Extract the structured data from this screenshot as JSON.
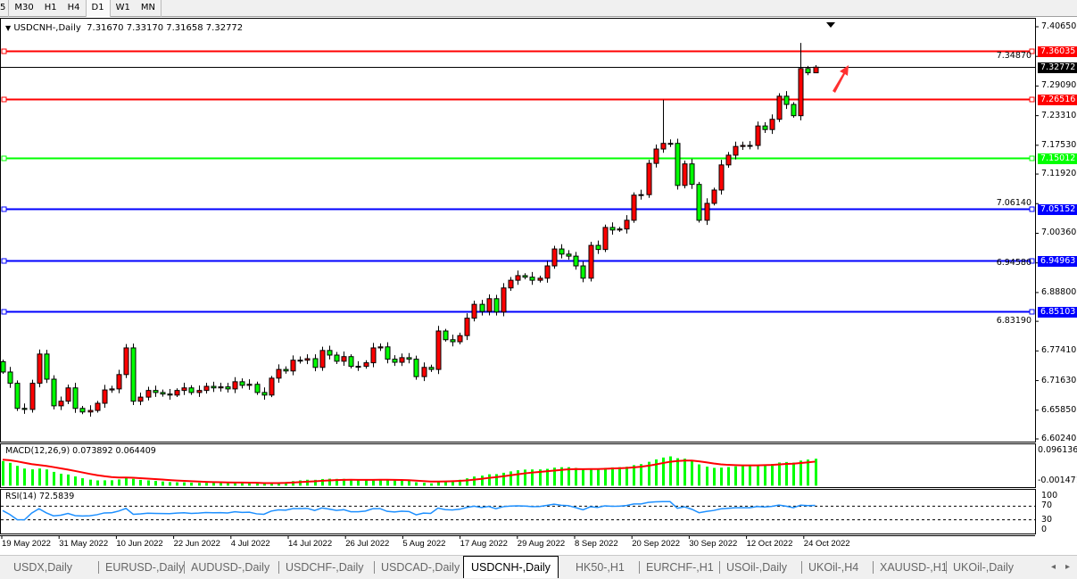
{
  "toolbar": {
    "timeframes": [
      "5",
      "M30",
      "H1",
      "H4",
      "D1",
      "W1",
      "MN"
    ],
    "active": "D1"
  },
  "header": {
    "symbol": "USDCNH-,Daily",
    "open": "7.31670",
    "high": "7.33170",
    "low": "7.31658",
    "close": "7.32772"
  },
  "chart_data": {
    "type": "candlestick",
    "symbol": "USDCNH-",
    "timeframe": "Daily",
    "up_color": "#ff0000",
    "down_color": "#00ff00",
    "price_axis_ticks": [
      "7.40650",
      "7.34870",
      "7.29090",
      "7.23310",
      "7.17530",
      "7.11920",
      "7.06140",
      "7.00360",
      "6.94580",
      "6.88800",
      "6.83190",
      "6.77410",
      "6.71630",
      "6.65850",
      "6.60240"
    ],
    "ylim": [
      6.6024,
      7.4065
    ],
    "date_ticks": [
      "19 May 2022",
      "31 May 2022",
      "10 Jun 2022",
      "22 Jun 2022",
      "4 Jul 2022",
      "14 Jul 2022",
      "26 Jul 2022",
      "5 Aug 2022",
      "17 Aug 2022",
      "29 Aug 2022",
      "8 Sep 2022",
      "20 Sep 2022",
      "30 Sep 2022",
      "12 Oct 2022",
      "24 Oct 2022"
    ],
    "closes": [
      6.733,
      6.711,
      6.662,
      6.66,
      6.711,
      6.768,
      6.719,
      6.667,
      6.676,
      6.702,
      6.662,
      6.655,
      6.658,
      6.672,
      6.698,
      6.7,
      6.728,
      6.78,
      6.676,
      6.684,
      6.697,
      6.693,
      6.69,
      6.688,
      6.697,
      6.702,
      6.693,
      6.697,
      6.705,
      6.702,
      6.704,
      6.7,
      6.714,
      6.707,
      6.709,
      6.693,
      6.688,
      6.721,
      6.738,
      6.735,
      6.756,
      6.756,
      6.759,
      6.742,
      6.775,
      6.766,
      6.754,
      6.763,
      6.744,
      6.744,
      6.751,
      6.78,
      6.782,
      6.758,
      6.752,
      6.761,
      6.758,
      6.724,
      6.742,
      6.738,
      6.813,
      6.796,
      6.792,
      6.804,
      6.838,
      6.865,
      6.851,
      6.876,
      6.85,
      6.897,
      6.912,
      6.921,
      6.918,
      6.912,
      6.916,
      6.94,
      6.973,
      6.963,
      6.959,
      6.94,
      6.916,
      6.98,
      6.972,
      7.015,
      7.01,
      7.012,
      7.029,
      7.078,
      7.079,
      7.14,
      7.168,
      7.179,
      7.179,
      7.097,
      7.139,
      7.099,
      7.029,
      7.062,
      7.088,
      7.137,
      7.156,
      7.173,
      7.175,
      7.175,
      7.213,
      7.206,
      7.226,
      7.271,
      7.255,
      7.233,
      7.325,
      7.3167,
      7.32772
    ],
    "last_candle": {
      "open": 7.3167,
      "high": 7.3317,
      "low": 7.31658,
      "close": 7.32772
    },
    "levels": [
      {
        "price": 7.36035,
        "label": "7.36035",
        "color": "#ff0000"
      },
      {
        "price": 7.26516,
        "label": "7.26516",
        "color": "#ff0000"
      },
      {
        "price": 7.15012,
        "label": "7.15012",
        "color": "#00ff00"
      },
      {
        "price": 7.05152,
        "label": "7.05152",
        "color": "#0000ff"
      },
      {
        "price": 6.94963,
        "label": "6.94963",
        "color": "#0000ff"
      },
      {
        "price": 6.85103,
        "label": "6.85103",
        "color": "#0000ff"
      }
    ],
    "current_price": {
      "price": 7.32772,
      "label": "7.32772",
      "color": "#000000"
    },
    "macd": {
      "label": "MACD(12,26,9) 0.073892 0.064409",
      "ticks": [
        "0.096136",
        "-0.001471"
      ],
      "range": [
        -0.001471,
        0.096136
      ],
      "histogram_color": "#00ff00",
      "signal_color": "#ff0000"
    },
    "rsi": {
      "label": "RSI(14) 72.5839",
      "ticks": [
        "100",
        "70",
        "30",
        "0"
      ],
      "levels": [
        70,
        30
      ],
      "color": "#1e90ff"
    }
  },
  "tabs": [
    "USDX,Daily",
    "EURUSD-,Daily",
    "AUDUSD-,Daily",
    "USDCHF-,Daily",
    "USDCAD-,Daily",
    "USDCNH-,Daily",
    "HK50-,H1",
    "EURCHF-,H1",
    "USOil-,Daily",
    "UKOil-,H4",
    "XAUUSD-,H1",
    "UKOil-,Daily"
  ],
  "active_tab": "USDCNH-,Daily"
}
